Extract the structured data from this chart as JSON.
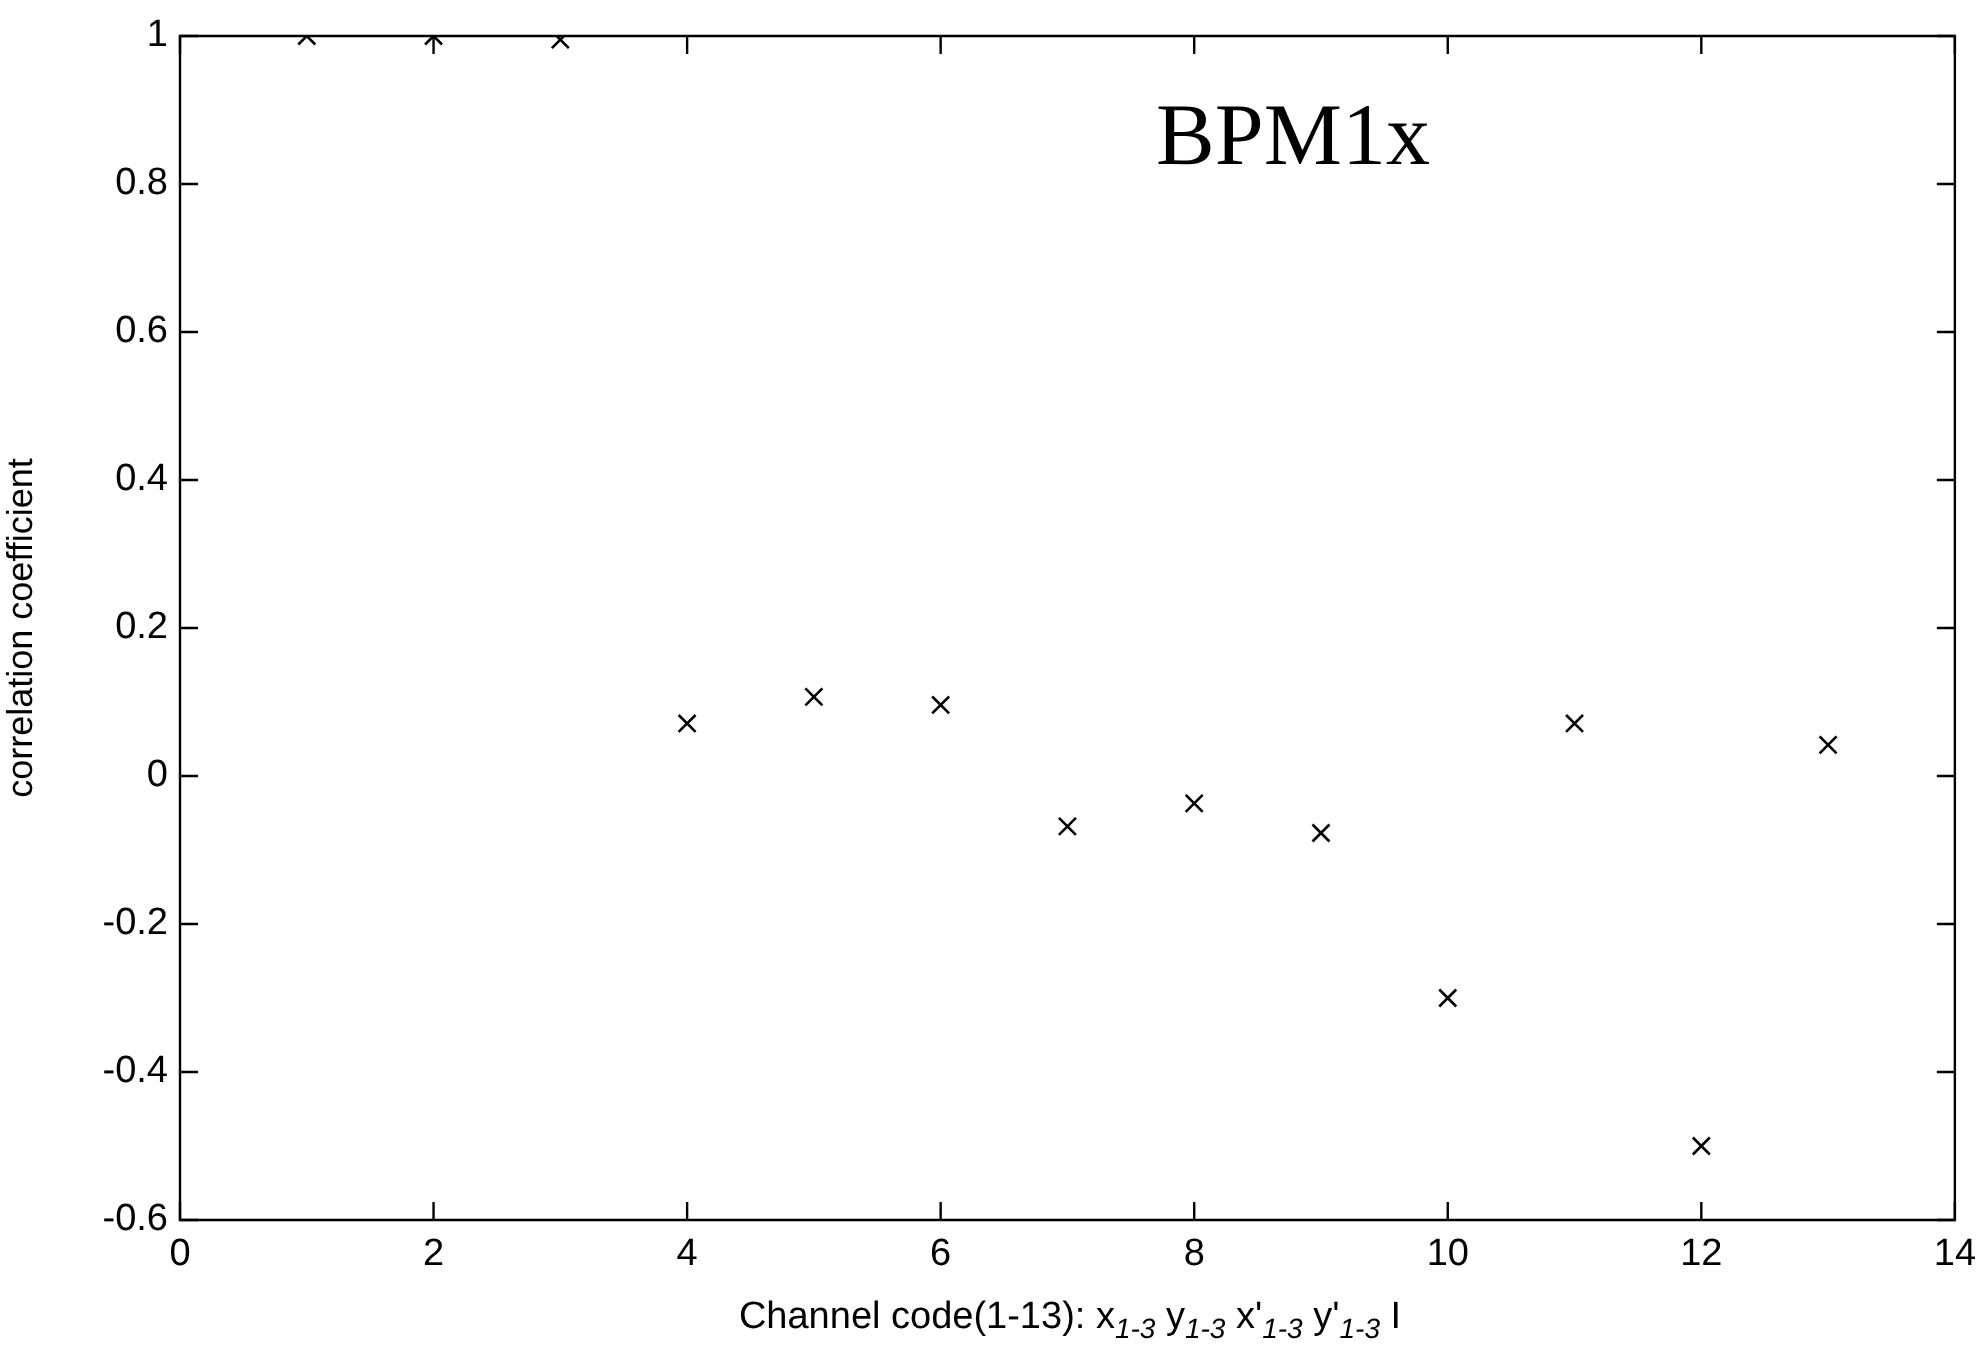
{
  "chart_data": {
    "type": "scatter",
    "xlabel": "Channel code(1-13): x$_{1-3}$ y$_{1-3}$ x'$_{1-3}$ y'$_{1-3}$ I",
    "ylabel": "correlation coefficient",
    "annotations": [
      "BPM1x"
    ],
    "x": [
      1,
      2,
      3,
      4,
      5,
      6,
      7,
      8,
      9,
      10,
      11,
      12,
      13
    ],
    "series": [
      {
        "color": "#000000",
        "values": [
          1.0,
          1.0,
          0.995,
          0.071,
          0.107,
          0.096,
          -0.068,
          -0.037,
          -0.077,
          -0.3,
          0.071,
          -0.5,
          0.042
        ]
      }
    ],
    "xlim": [
      0,
      14
    ],
    "xticks": [
      0,
      2,
      4,
      6,
      8,
      10,
      12,
      14
    ],
    "ylim": [
      -0.6,
      1
    ],
    "yticks": [
      -0.6,
      -0.4,
      -0.2,
      0,
      0.2,
      0.4,
      0.6,
      0.8,
      1
    ],
    "marker": "cross",
    "grid": false,
    "legend": false
  }
}
